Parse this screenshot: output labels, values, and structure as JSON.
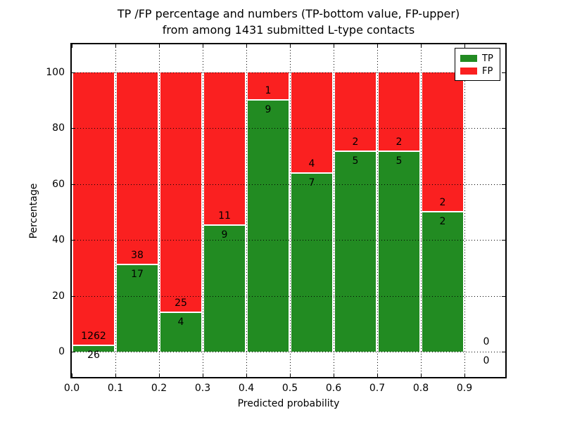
{
  "chart_data": {
    "type": "bar",
    "stacked": true,
    "title_lines": [
      "TP /FP percentage and numbers (TP-bottom value, FP-upper)",
      "from among 1431 submitted L-type contacts"
    ],
    "xlabel": "Predicted probability",
    "ylabel": "Percentage",
    "xlim": [
      0.0,
      1.0
    ],
    "ylim": [
      -10,
      110
    ],
    "xtick_labels": [
      "0.0",
      "0.1",
      "0.2",
      "0.3",
      "0.4",
      "0.5",
      "0.6",
      "0.7",
      "0.8",
      "0.9"
    ],
    "ytick_values": [
      0,
      20,
      40,
      60,
      80,
      100
    ],
    "grid_style": "dotted",
    "total_contacts": 1431,
    "colors": {
      "tp": "#228B22",
      "fp": "#FA2020"
    },
    "legend": {
      "position": "upper-right",
      "entries": [
        {
          "label": "TP",
          "color": "#228B22"
        },
        {
          "label": "FP",
          "color": "#FA2020"
        }
      ]
    },
    "note": "Each 0.1-wide bin is stacked to 100%: TP percentage on bottom (green), FP percentage on top (red). Numbers printed at the color boundary are raw counts: FP count above, TP count below.",
    "bins": [
      {
        "x0": 0.0,
        "x1": 0.1,
        "tp": 26,
        "fp": 1262
      },
      {
        "x0": 0.1,
        "x1": 0.2,
        "tp": 17,
        "fp": 38
      },
      {
        "x0": 0.2,
        "x1": 0.3,
        "tp": 4,
        "fp": 25
      },
      {
        "x0": 0.3,
        "x1": 0.4,
        "tp": 9,
        "fp": 11
      },
      {
        "x0": 0.4,
        "x1": 0.5,
        "tp": 9,
        "fp": 1
      },
      {
        "x0": 0.5,
        "x1": 0.6,
        "tp": 7,
        "fp": 4
      },
      {
        "x0": 0.6,
        "x1": 0.7,
        "tp": 5,
        "fp": 2
      },
      {
        "x0": 0.7,
        "x1": 0.8,
        "tp": 5,
        "fp": 2
      },
      {
        "x0": 0.8,
        "x1": 0.9,
        "tp": 2,
        "fp": 2
      },
      {
        "x0": 0.9,
        "x1": 1.0,
        "tp": 0,
        "fp": 0
      }
    ]
  }
}
